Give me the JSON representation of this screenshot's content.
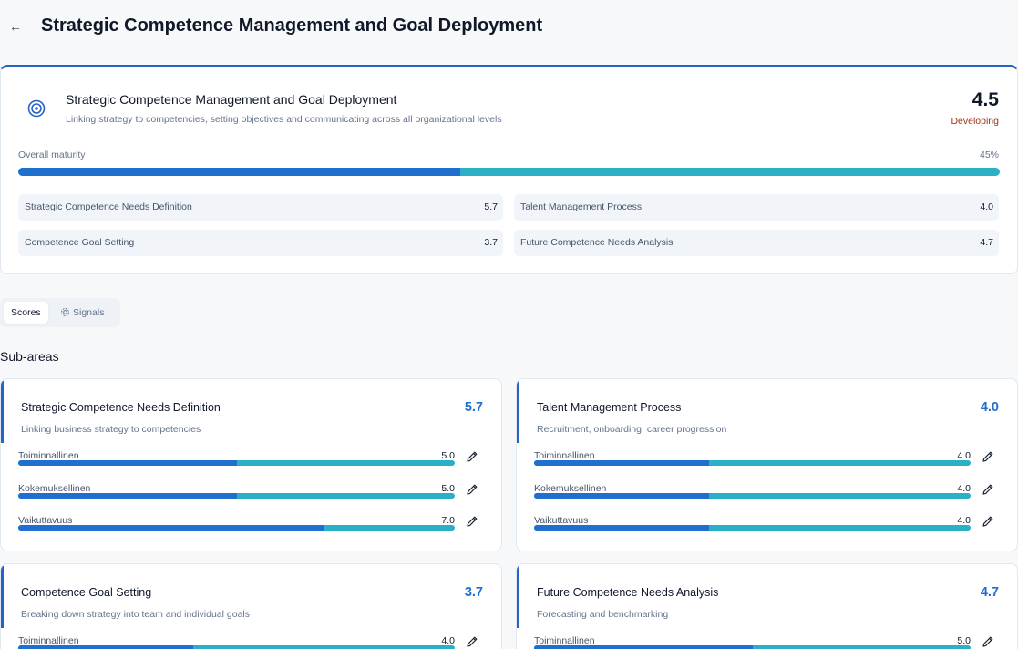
{
  "header": {
    "back_label": "←",
    "title": "Strategic Competence Management and Goal Deployment"
  },
  "summary": {
    "title": "Strategic Competence Management and Goal Deployment",
    "description": "Linking strategy to competencies, setting objectives and communicating across all organizational levels",
    "score": "4.5",
    "level": "Developing",
    "maturity_label": "Overall maturity",
    "maturity_pct_label": "45%",
    "maturity_fraction": 0.45,
    "chips": [
      {
        "label": "Strategic Competence Needs Definition",
        "value": "5.7"
      },
      {
        "label": "Talent Management Process",
        "value": "4.0"
      },
      {
        "label": "Competence Goal Setting",
        "value": "3.7"
      },
      {
        "label": "Future Competence Needs Analysis",
        "value": "4.7"
      }
    ]
  },
  "tabs": {
    "scores": "Scores",
    "signals": "Signals"
  },
  "section_title": "Sub-areas",
  "cards": [
    {
      "title": "Strategic Competence Needs Definition",
      "score": "5.7",
      "desc": "Linking business strategy to competencies",
      "dims": [
        {
          "label": "Toiminnallinen",
          "value": "5.0",
          "fraction": 0.5
        },
        {
          "label": "Kokemuksellinen",
          "value": "5.0",
          "fraction": 0.5
        },
        {
          "label": "Vaikuttavuus",
          "value": "7.0",
          "fraction": 0.7
        }
      ]
    },
    {
      "title": "Talent Management Process",
      "score": "4.0",
      "desc": "Recruitment, onboarding, career progression",
      "dims": [
        {
          "label": "Toiminnallinen",
          "value": "4.0",
          "fraction": 0.4
        },
        {
          "label": "Kokemuksellinen",
          "value": "4.0",
          "fraction": 0.4
        },
        {
          "label": "Vaikuttavuus",
          "value": "4.0",
          "fraction": 0.4
        }
      ]
    },
    {
      "title": "Competence Goal Setting",
      "score": "3.7",
      "desc": "Breaking down strategy into team and individual goals",
      "dims": [
        {
          "label": "Toiminnallinen",
          "value": "4.0",
          "fraction": 0.4
        }
      ]
    },
    {
      "title": "Future Competence Needs Analysis",
      "score": "4.7",
      "desc": "Forecasting and benchmarking",
      "dims": [
        {
          "label": "Toiminnallinen",
          "value": "5.0",
          "fraction": 0.5
        }
      ]
    }
  ],
  "colors": {
    "accent": "#2563c7",
    "bar_fill": "#1f6fcf",
    "bar_track": "#2bb0c8",
    "level": "#9a3412"
  },
  "icons": {
    "back": "arrow-left-icon",
    "target": "target-icon",
    "signals": "gear-icon",
    "edit": "pencil-icon"
  }
}
